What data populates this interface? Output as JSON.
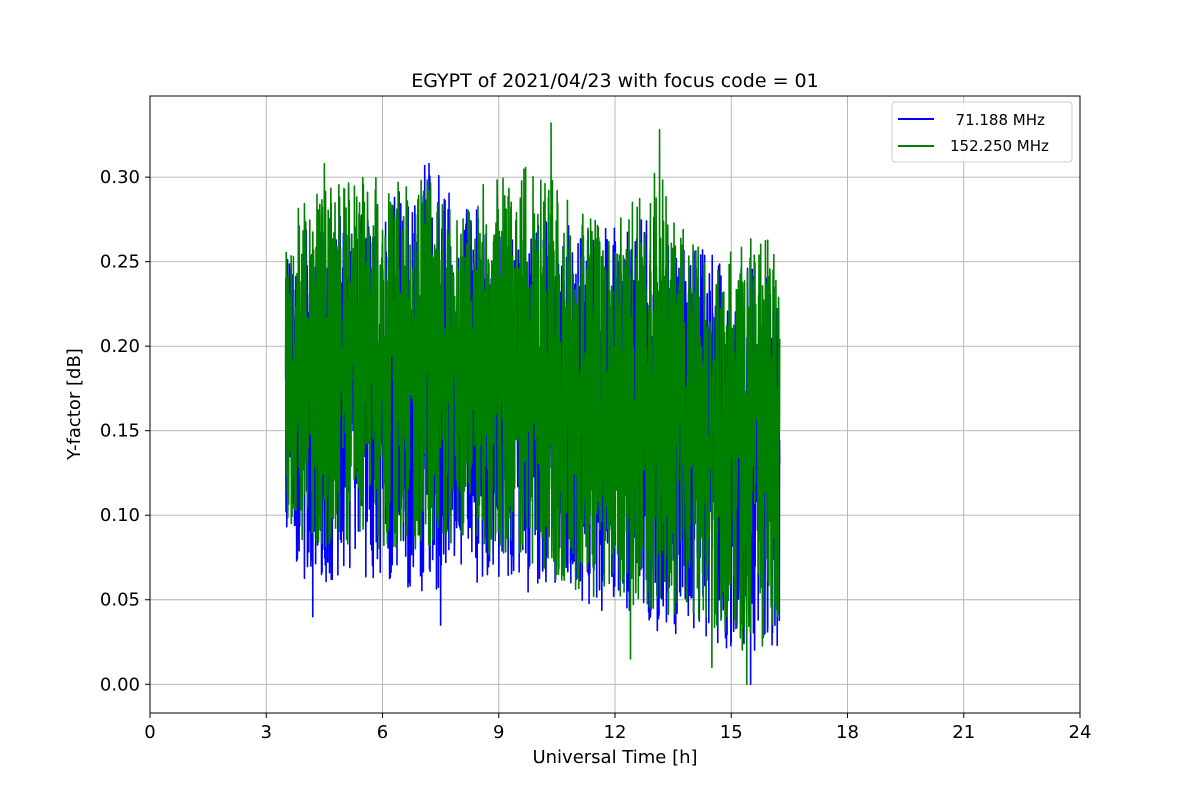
{
  "chart_data": {
    "type": "line",
    "title": "EGYPT of 2021/04/23 with focus code = 01",
    "xlabel": "Universal Time [h]",
    "ylabel": "Y-factor [dB]",
    "xlim": [
      0,
      24
    ],
    "ylim": [
      -0.017,
      0.348
    ],
    "xticks": [
      0,
      3,
      6,
      9,
      12,
      15,
      18,
      21,
      24
    ],
    "xtick_labels": [
      "0",
      "3",
      "6",
      "9",
      "12",
      "15",
      "18",
      "21",
      "24"
    ],
    "yticks": [
      0.0,
      0.05,
      0.1,
      0.15,
      0.2,
      0.25,
      0.3
    ],
    "ytick_labels": [
      "0.00",
      "0.05",
      "0.10",
      "0.15",
      "0.20",
      "0.25",
      "0.30"
    ],
    "grid": true,
    "legend_position": "top-right",
    "series": [
      {
        "name": "  71.188 MHz",
        "color": "#0000ff",
        "x_range": [
          3.5,
          16.25
        ],
        "envelope": [
          {
            "x": 3.5,
            "low": 0.09,
            "high": 0.25,
            "mean": 0.18
          },
          {
            "x": 4.0,
            "low": 0.06,
            "high": 0.27,
            "mean": 0.18
          },
          {
            "x": 5.0,
            "low": 0.06,
            "high": 0.28,
            "mean": 0.18
          },
          {
            "x": 6.0,
            "low": 0.06,
            "high": 0.28,
            "mean": 0.18
          },
          {
            "x": 7.0,
            "low": 0.05,
            "high": 0.31,
            "mean": 0.18
          },
          {
            "x": 8.0,
            "low": 0.06,
            "high": 0.29,
            "mean": 0.18
          },
          {
            "x": 9.0,
            "low": 0.06,
            "high": 0.27,
            "mean": 0.17
          },
          {
            "x": 10.0,
            "low": 0.05,
            "high": 0.28,
            "mean": 0.17
          },
          {
            "x": 11.0,
            "low": 0.05,
            "high": 0.27,
            "mean": 0.16
          },
          {
            "x": 12.0,
            "low": 0.04,
            "high": 0.27,
            "mean": 0.16
          },
          {
            "x": 13.0,
            "low": 0.03,
            "high": 0.28,
            "mean": 0.16
          },
          {
            "x": 14.0,
            "low": 0.03,
            "high": 0.26,
            "mean": 0.15
          },
          {
            "x": 15.0,
            "low": 0.02,
            "high": 0.25,
            "mean": 0.14
          },
          {
            "x": 16.25,
            "low": 0.02,
            "high": 0.24,
            "mean": 0.14
          }
        ],
        "extremes": [
          {
            "x": 4.2,
            "y": 0.04
          },
          {
            "x": 7.5,
            "y": 0.035
          },
          {
            "x": 7.2,
            "y": 0.308
          },
          {
            "x": 15.5,
            "y": 0.0
          },
          {
            "x": 15.0,
            "y": 0.025
          }
        ]
      },
      {
        "name": "152.250 MHz",
        "color": "#008000",
        "x_range": [
          3.5,
          16.25
        ],
        "envelope": [
          {
            "x": 3.5,
            "low": 0.1,
            "high": 0.27,
            "mean": 0.19
          },
          {
            "x": 4.0,
            "low": 0.08,
            "high": 0.29,
            "mean": 0.19
          },
          {
            "x": 5.0,
            "low": 0.08,
            "high": 0.3,
            "mean": 0.19
          },
          {
            "x": 6.0,
            "low": 0.08,
            "high": 0.3,
            "mean": 0.19
          },
          {
            "x": 7.0,
            "low": 0.08,
            "high": 0.3,
            "mean": 0.19
          },
          {
            "x": 8.0,
            "low": 0.08,
            "high": 0.29,
            "mean": 0.19
          },
          {
            "x": 9.0,
            "low": 0.07,
            "high": 0.3,
            "mean": 0.18
          },
          {
            "x": 10.0,
            "low": 0.07,
            "high": 0.31,
            "mean": 0.18
          },
          {
            "x": 11.0,
            "low": 0.05,
            "high": 0.28,
            "mean": 0.16
          },
          {
            "x": 12.0,
            "low": 0.05,
            "high": 0.27,
            "mean": 0.16
          },
          {
            "x": 13.0,
            "low": 0.04,
            "high": 0.31,
            "mean": 0.16
          },
          {
            "x": 14.0,
            "low": 0.04,
            "high": 0.26,
            "mean": 0.15
          },
          {
            "x": 15.0,
            "low": 0.02,
            "high": 0.26,
            "mean": 0.14
          },
          {
            "x": 16.25,
            "low": 0.02,
            "high": 0.27,
            "mean": 0.15
          }
        ],
        "extremes": [
          {
            "x": 4.5,
            "y": 0.308
          },
          {
            "x": 10.35,
            "y": 0.332
          },
          {
            "x": 13.15,
            "y": 0.328
          },
          {
            "x": 12.4,
            "y": 0.015
          },
          {
            "x": 15.4,
            "y": 0.0
          },
          {
            "x": 14.5,
            "y": 0.01
          }
        ]
      }
    ]
  }
}
